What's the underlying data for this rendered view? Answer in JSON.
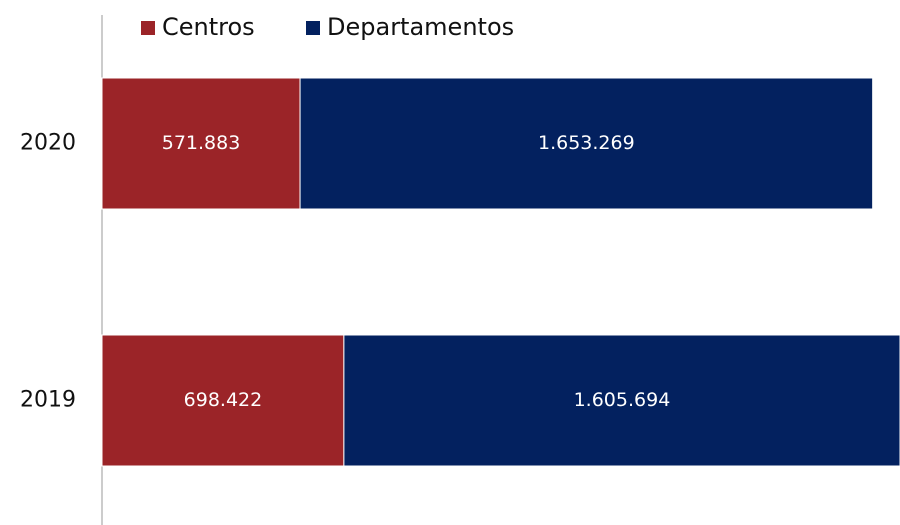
{
  "chart_data": {
    "type": "stacked-bar-horizontal",
    "categories": [
      "2020",
      "2019"
    ],
    "series": [
      {
        "name": "Centros",
        "color": "#9b2428",
        "values": [
          571883,
          698422
        ],
        "value_labels": [
          "571.883",
          "698.422"
        ]
      },
      {
        "name": "Departamentos",
        "color": "#03215f",
        "values": [
          1653269,
          1605694
        ],
        "value_labels": [
          "1.653.269",
          "1.605.694"
        ]
      }
    ],
    "legend": "top"
  }
}
